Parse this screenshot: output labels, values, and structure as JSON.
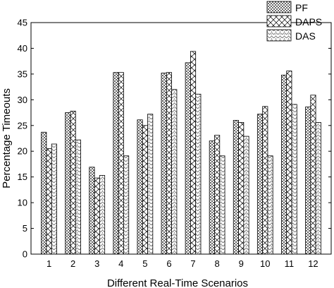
{
  "chart_data": {
    "type": "bar",
    "xlabel": "Different Real-Time Scenarios",
    "ylabel": "Percentage Timeouts",
    "ylim": [
      0,
      45
    ],
    "yticks": [
      0,
      5,
      10,
      15,
      20,
      25,
      30,
      35,
      40,
      45
    ],
    "categories": [
      "1",
      "2",
      "3",
      "4",
      "5",
      "6",
      "7",
      "8",
      "9",
      "10",
      "11",
      "12"
    ],
    "series": [
      {
        "name": "PF",
        "values": [
          23.7,
          27.5,
          16.9,
          35.3,
          26.1,
          35.2,
          37.2,
          22.0,
          26.0,
          27.2,
          34.8,
          28.6
        ]
      },
      {
        "name": "DAPS",
        "values": [
          20.5,
          27.8,
          14.8,
          35.3,
          25.0,
          35.3,
          39.4,
          23.1,
          25.6,
          28.7,
          35.6,
          30.9
        ]
      },
      {
        "name": "DAS",
        "values": [
          21.4,
          22.2,
          15.3,
          19.1,
          27.2,
          32.0,
          31.1,
          19.1,
          22.9,
          19.1,
          29.1,
          25.6
        ]
      }
    ],
    "legend": {
      "position": "top-right"
    },
    "grid": false
  }
}
